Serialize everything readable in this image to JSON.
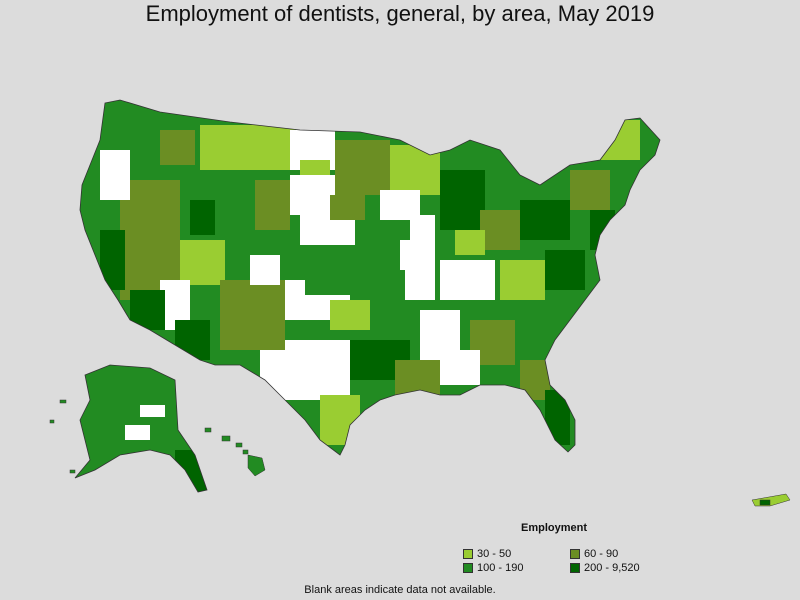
{
  "title": "Employment of dentists, general, by area, May 2019",
  "legend": {
    "title": "Employment",
    "items": [
      {
        "label": "30 - 50",
        "color": "#9acd32"
      },
      {
        "label": "60 - 90",
        "color": "#6b8e23"
      },
      {
        "label": "100 - 190",
        "color": "#228b22"
      },
      {
        "label": "200 - 9,520",
        "color": "#006400"
      }
    ]
  },
  "footnote": "Blank areas indicate data not available.",
  "colors": {
    "background": "#dcdcdc",
    "no_data": "#ffffff",
    "border": "#333333"
  }
}
